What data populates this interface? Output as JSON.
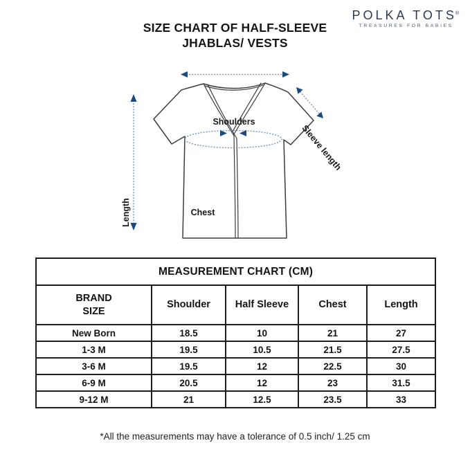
{
  "brand": {
    "name": "POLKA TOTS",
    "registered_mark": "®",
    "tagline": "TREASURES FOR BABIES"
  },
  "title": {
    "line1": "SIZE CHART OF HALF-SLEEVE",
    "line2": "JHABLAS/ VESTS"
  },
  "diagram": {
    "labels": {
      "shoulders": "Shoulders",
      "sleeve_length": "Sleeve length",
      "length": "Length",
      "chest": "Chest"
    }
  },
  "table": {
    "title": "MEASUREMENT CHART (CM)",
    "columns": [
      "BRAND\nSIZE",
      "Shoulder",
      "Half Sleeve",
      "Chest",
      "Length"
    ],
    "rows": [
      [
        "New Born",
        "18.5",
        "10",
        "21",
        "27"
      ],
      [
        "1-3 M",
        "19.5",
        "10.5",
        "21.5",
        "27.5"
      ],
      [
        "3-6 M",
        "19.5",
        "12",
        "22.5",
        "30"
      ],
      [
        "6-9 M",
        "20.5",
        "12",
        "23",
        "31.5"
      ],
      [
        "9-12 M",
        "21",
        "12.5",
        "23.5",
        "33"
      ]
    ]
  },
  "footnote": "*All the measurements may have a tolerance of 0.5 inch/ 1.25 cm",
  "colors": {
    "arrow": "#1a4a80",
    "dotted_line": "#7e96b4",
    "garment_outline": "#3c3c3c",
    "text": "#1c1c1c",
    "logo": "#2c3a50"
  }
}
